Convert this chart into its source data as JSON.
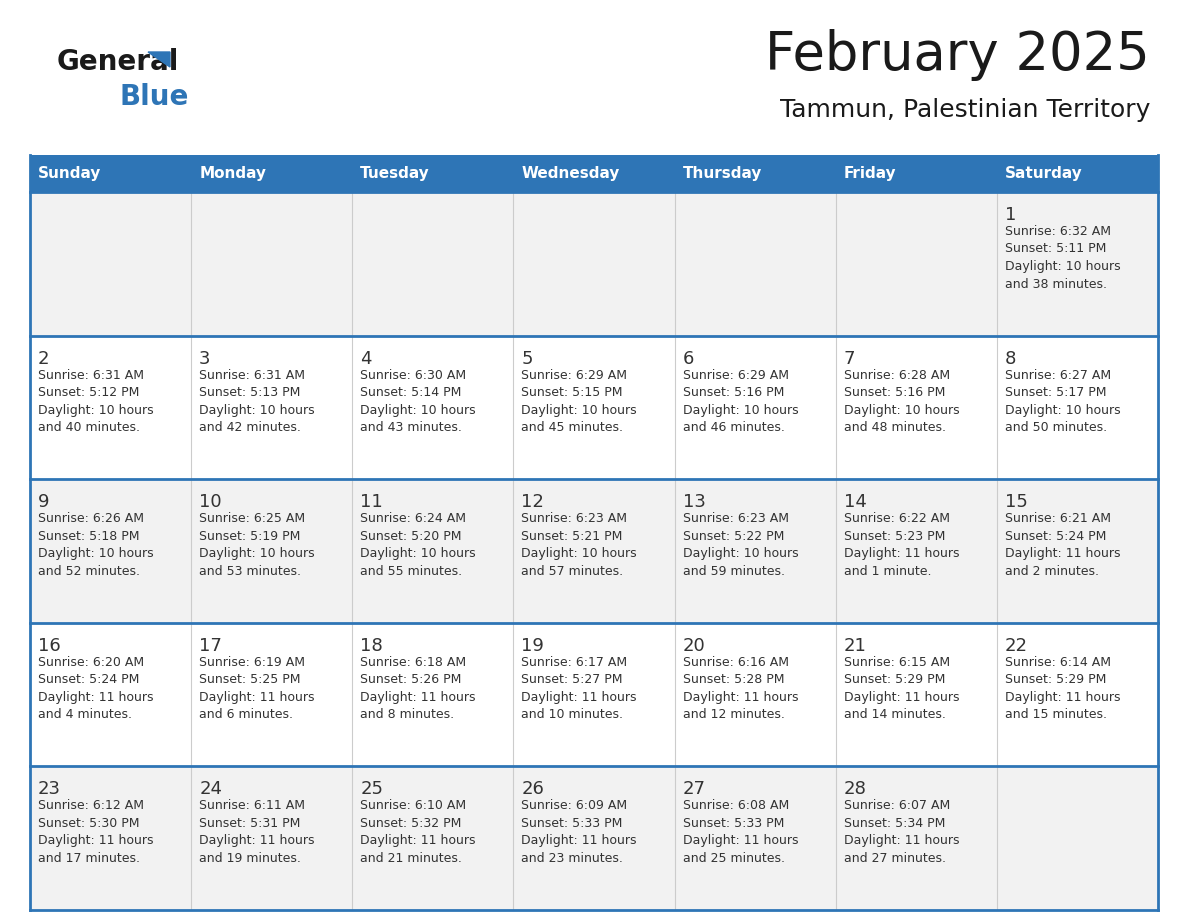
{
  "title": "February 2025",
  "subtitle": "Tammun, Palestinian Territory",
  "header_bg_color": "#2E75B6",
  "header_text_color": "#FFFFFF",
  "days_of_week": [
    "Sunday",
    "Monday",
    "Tuesday",
    "Wednesday",
    "Thursday",
    "Friday",
    "Saturday"
  ],
  "row_bg_colors": [
    "#F2F2F2",
    "#FFFFFF",
    "#F2F2F2",
    "#FFFFFF",
    "#F2F2F2"
  ],
  "cell_border_color": "#2E75B6",
  "day_number_color": "#333333",
  "info_text_color": "#333333",
  "title_color": "#1A1A1A",
  "subtitle_color": "#1A1A1A",
  "logo_color_general": "#1A1A1A",
  "logo_color_blue": "#2E75B6",
  "logo_triangle_color": "#2E75B6",
  "calendar_data": [
    [
      {
        "day": "",
        "sunrise": "",
        "sunset": "",
        "daylight": ""
      },
      {
        "day": "",
        "sunrise": "",
        "sunset": "",
        "daylight": ""
      },
      {
        "day": "",
        "sunrise": "",
        "sunset": "",
        "daylight": ""
      },
      {
        "day": "",
        "sunrise": "",
        "sunset": "",
        "daylight": ""
      },
      {
        "day": "",
        "sunrise": "",
        "sunset": "",
        "daylight": ""
      },
      {
        "day": "",
        "sunrise": "",
        "sunset": "",
        "daylight": ""
      },
      {
        "day": "1",
        "sunrise": "6:32 AM",
        "sunset": "5:11 PM",
        "daylight": "10 hours and 38 minutes."
      }
    ],
    [
      {
        "day": "2",
        "sunrise": "6:31 AM",
        "sunset": "5:12 PM",
        "daylight": "10 hours and 40 minutes."
      },
      {
        "day": "3",
        "sunrise": "6:31 AM",
        "sunset": "5:13 PM",
        "daylight": "10 hours and 42 minutes."
      },
      {
        "day": "4",
        "sunrise": "6:30 AM",
        "sunset": "5:14 PM",
        "daylight": "10 hours and 43 minutes."
      },
      {
        "day": "5",
        "sunrise": "6:29 AM",
        "sunset": "5:15 PM",
        "daylight": "10 hours and 45 minutes."
      },
      {
        "day": "6",
        "sunrise": "6:29 AM",
        "sunset": "5:16 PM",
        "daylight": "10 hours and 46 minutes."
      },
      {
        "day": "7",
        "sunrise": "6:28 AM",
        "sunset": "5:16 PM",
        "daylight": "10 hours and 48 minutes."
      },
      {
        "day": "8",
        "sunrise": "6:27 AM",
        "sunset": "5:17 PM",
        "daylight": "10 hours and 50 minutes."
      }
    ],
    [
      {
        "day": "9",
        "sunrise": "6:26 AM",
        "sunset": "5:18 PM",
        "daylight": "10 hours and 52 minutes."
      },
      {
        "day": "10",
        "sunrise": "6:25 AM",
        "sunset": "5:19 PM",
        "daylight": "10 hours and 53 minutes."
      },
      {
        "day": "11",
        "sunrise": "6:24 AM",
        "sunset": "5:20 PM",
        "daylight": "10 hours and 55 minutes."
      },
      {
        "day": "12",
        "sunrise": "6:23 AM",
        "sunset": "5:21 PM",
        "daylight": "10 hours and 57 minutes."
      },
      {
        "day": "13",
        "sunrise": "6:23 AM",
        "sunset": "5:22 PM",
        "daylight": "10 hours and 59 minutes."
      },
      {
        "day": "14",
        "sunrise": "6:22 AM",
        "sunset": "5:23 PM",
        "daylight": "11 hours and 1 minute."
      },
      {
        "day": "15",
        "sunrise": "6:21 AM",
        "sunset": "5:24 PM",
        "daylight": "11 hours and 2 minutes."
      }
    ],
    [
      {
        "day": "16",
        "sunrise": "6:20 AM",
        "sunset": "5:24 PM",
        "daylight": "11 hours and 4 minutes."
      },
      {
        "day": "17",
        "sunrise": "6:19 AM",
        "sunset": "5:25 PM",
        "daylight": "11 hours and 6 minutes."
      },
      {
        "day": "18",
        "sunrise": "6:18 AM",
        "sunset": "5:26 PM",
        "daylight": "11 hours and 8 minutes."
      },
      {
        "day": "19",
        "sunrise": "6:17 AM",
        "sunset": "5:27 PM",
        "daylight": "11 hours and 10 minutes."
      },
      {
        "day": "20",
        "sunrise": "6:16 AM",
        "sunset": "5:28 PM",
        "daylight": "11 hours and 12 minutes."
      },
      {
        "day": "21",
        "sunrise": "6:15 AM",
        "sunset": "5:29 PM",
        "daylight": "11 hours and 14 minutes."
      },
      {
        "day": "22",
        "sunrise": "6:14 AM",
        "sunset": "5:29 PM",
        "daylight": "11 hours and 15 minutes."
      }
    ],
    [
      {
        "day": "23",
        "sunrise": "6:12 AM",
        "sunset": "5:30 PM",
        "daylight": "11 hours and 17 minutes."
      },
      {
        "day": "24",
        "sunrise": "6:11 AM",
        "sunset": "5:31 PM",
        "daylight": "11 hours and 19 minutes."
      },
      {
        "day": "25",
        "sunrise": "6:10 AM",
        "sunset": "5:32 PM",
        "daylight": "11 hours and 21 minutes."
      },
      {
        "day": "26",
        "sunrise": "6:09 AM",
        "sunset": "5:33 PM",
        "daylight": "11 hours and 23 minutes."
      },
      {
        "day": "27",
        "sunrise": "6:08 AM",
        "sunset": "5:33 PM",
        "daylight": "11 hours and 25 minutes."
      },
      {
        "day": "28",
        "sunrise": "6:07 AM",
        "sunset": "5:34 PM",
        "daylight": "11 hours and 27 minutes."
      },
      {
        "day": "",
        "sunrise": "",
        "sunset": "",
        "daylight": ""
      }
    ]
  ]
}
